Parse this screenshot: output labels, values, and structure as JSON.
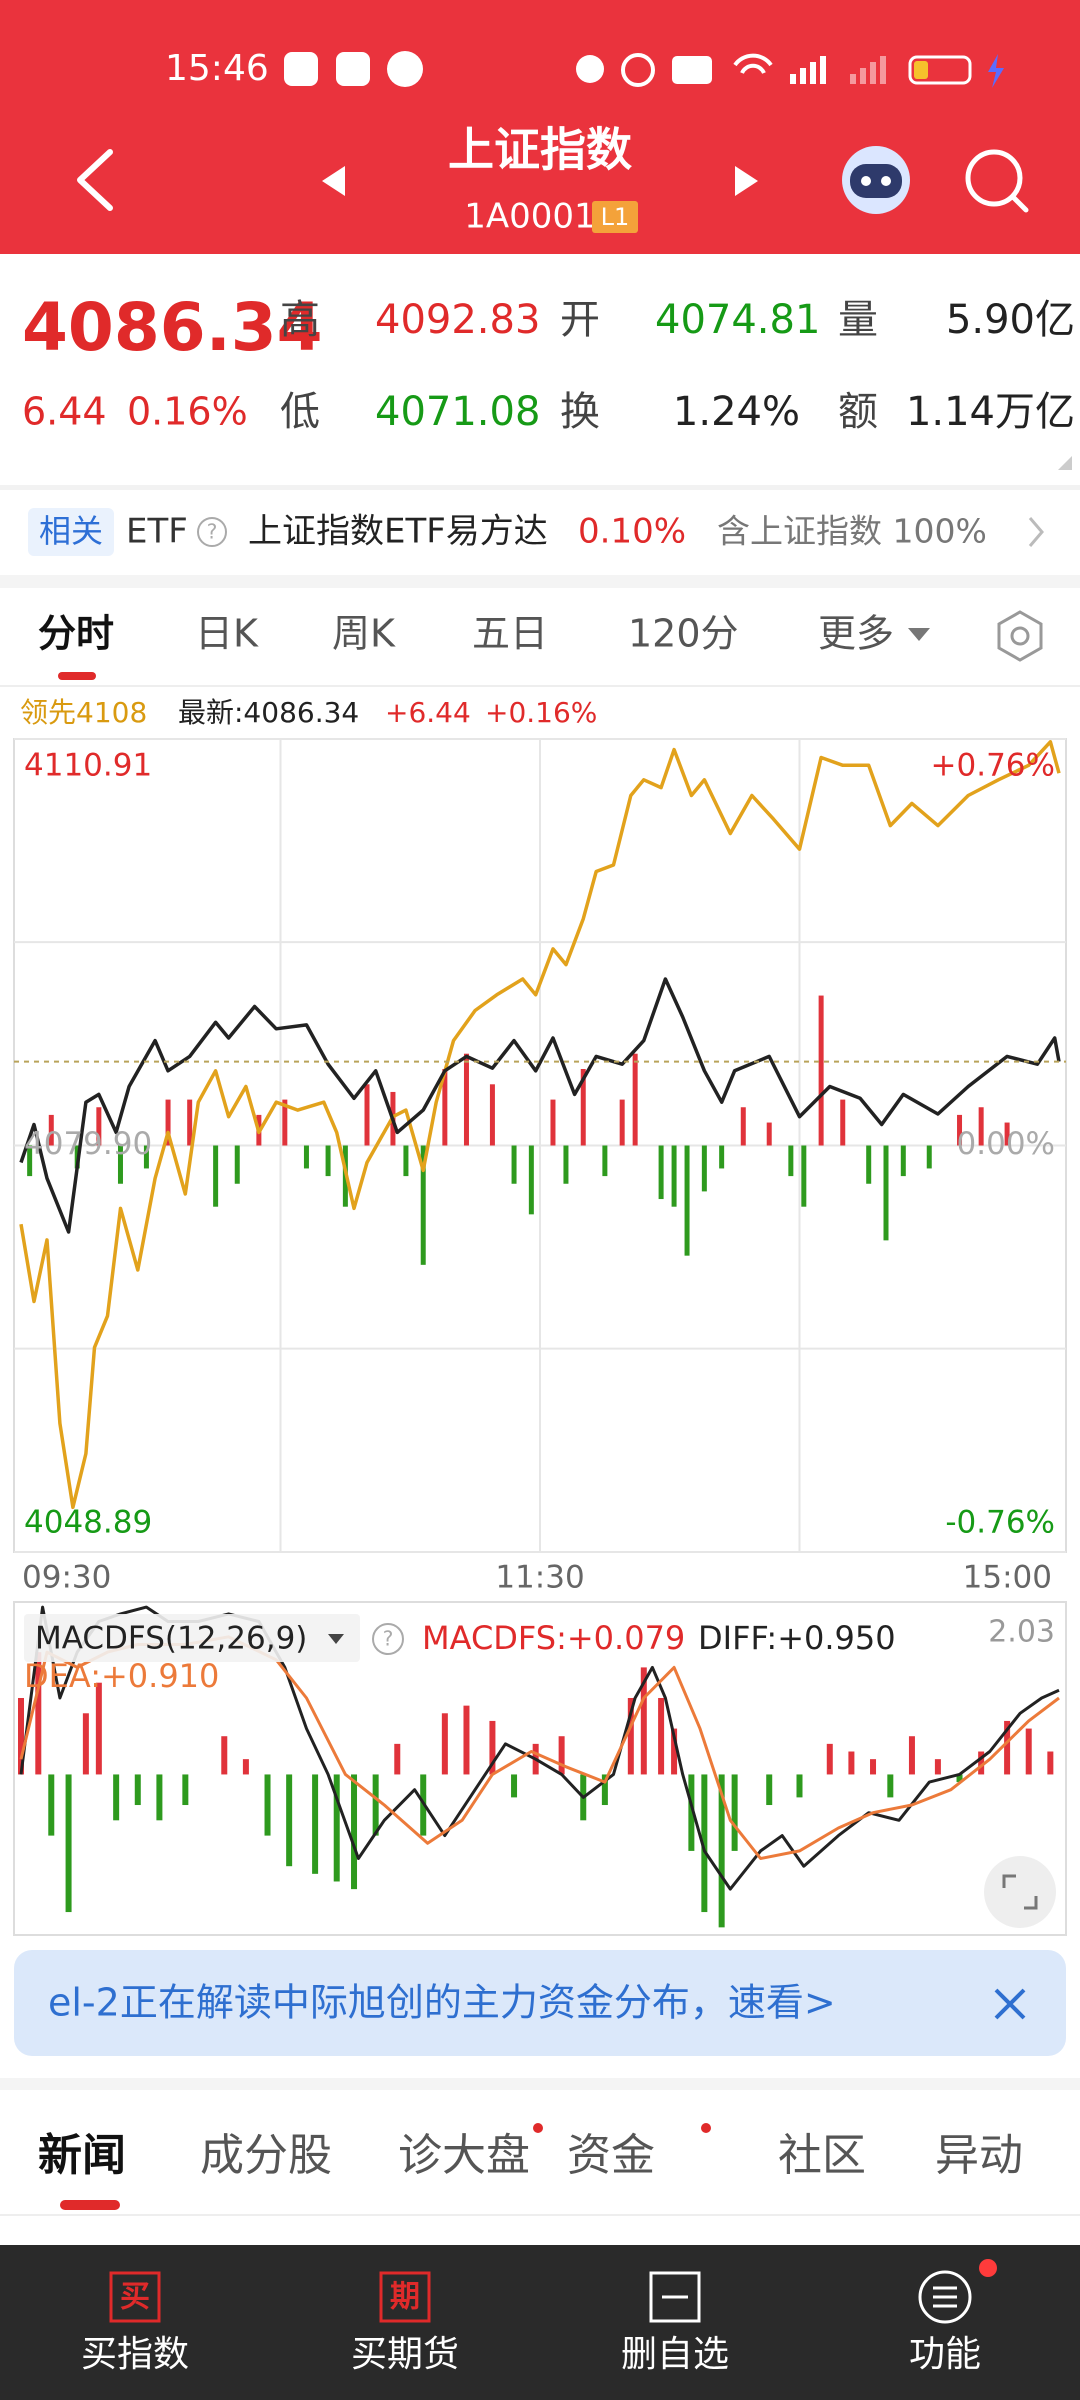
{
  "status_bar": {
    "time": "15:46"
  },
  "header": {
    "title": "上证指数",
    "code": "1A0001",
    "level": "L1"
  },
  "quote": {
    "price": "4086.34",
    "change": "6.44",
    "change_pct": "0.16%",
    "fields": [
      {
        "label": "高",
        "value": "4092.83"
      },
      {
        "label": "开",
        "value": "4074.81"
      },
      {
        "label": "量",
        "value": "5.90亿"
      },
      {
        "label": "低",
        "value": "4071.08"
      },
      {
        "label": "换",
        "value": "1.24%"
      },
      {
        "label": "额",
        "value": "1.14万亿"
      }
    ]
  },
  "etf": {
    "badge": "相关",
    "label": "ETF",
    "name": "上证指数ETF易方达",
    "change": "0.10%",
    "note": "含上证指数 100%"
  },
  "tabs": [
    "分时",
    "日K",
    "周K",
    "五日",
    "120分",
    "更多"
  ],
  "legend": {
    "lead": "领先4108",
    "latest": "最新:4086.34",
    "change": "+6.44",
    "change_pct": "+0.16%"
  },
  "chart_data": [
    {
      "type": "line",
      "xlim": [
        0,
        240
      ],
      "xticks": [
        {
          "value": 0,
          "label": "09:30"
        },
        {
          "value": 120,
          "label": "11:30"
        },
        {
          "value": 240,
          "label": "15:00"
        }
      ],
      "xgrid": [
        60,
        120,
        180
      ],
      "ylim": [
        4048.89,
        4110.91
      ],
      "yticks": [
        4110.91,
        {
          "value": 4079.9,
          "label": "4079.90"
        },
        4048.89
      ],
      "ygrid": [
        4095.41,
        4064.4
      ],
      "ytick_colors": [
        "#e02a2a",
        "#aaaaaa",
        "#169a16"
      ],
      "right_labels": [
        "+0.76%",
        "0.00%",
        "-0.76%"
      ],
      "bars": {
        "up_color": "#e0333b",
        "down_color": "#2e9a1e",
        "x": [
          2,
          7,
          13,
          18,
          23,
          29,
          34,
          39,
          45,
          50,
          55,
          61,
          66,
          71,
          75,
          80,
          86,
          89,
          93,
          98,
          103,
          109,
          114,
          118,
          123,
          126,
          130,
          135,
          139,
          142,
          148,
          151,
          154,
          158,
          162,
          167,
          173,
          178,
          181,
          185,
          190,
          196,
          200,
          204,
          210,
          217,
          222,
          228
        ],
        "values": [
          -20,
          20,
          -15,
          25,
          -25,
          -15,
          30,
          30,
          -40,
          -25,
          20,
          30,
          -15,
          -20,
          -40,
          40,
          35,
          -20,
          -78,
          50,
          60,
          40,
          -25,
          -45,
          30,
          -25,
          50,
          -20,
          30,
          60,
          -35,
          -40,
          -72,
          -30,
          -15,
          25,
          15,
          -20,
          -40,
          98,
          30,
          -25,
          -62,
          -20,
          -15,
          20,
          25,
          15
        ]
      },
      "series": [
        {
          "color": "#e2a21c",
          "x": [
            0,
            3,
            6,
            9,
            12,
            15,
            17,
            20,
            23,
            27,
            31,
            34,
            38,
            41,
            45,
            48,
            52,
            55,
            59,
            64,
            70,
            73,
            77,
            80,
            86,
            89,
            93,
            96,
            100,
            105,
            110,
            116,
            119,
            123,
            126,
            130,
            133,
            137,
            141,
            144,
            148,
            151,
            155,
            158,
            164,
            169,
            174,
            180,
            185,
            190,
            196,
            201,
            206,
            212,
            219,
            226,
            233,
            238,
            240
          ],
          "values": [
            4073.9,
            4068.0,
            4072.7,
            4058.7,
            4052.3,
            4056.4,
            4064.5,
            4066.9,
            4075.1,
            4070.4,
            4077.4,
            4080.9,
            4076.2,
            4083.2,
            4085.6,
            4082.1,
            4084.4,
            4080.9,
            4083.2,
            4082.6,
            4083.2,
            4080.9,
            4075.1,
            4078.6,
            4082.1,
            4082.6,
            4078.0,
            4083.2,
            4087.9,
            4090.2,
            4091.4,
            4092.6,
            4091.4,
            4094.9,
            4093.7,
            4097.2,
            4100.8,
            4101.3,
            4106.6,
            4107.8,
            4107.2,
            4110.1,
            4106.6,
            4107.8,
            4103.7,
            4106.6,
            4104.8,
            4102.5,
            4109.5,
            4108.9,
            4108.9,
            4104.3,
            4106.0,
            4104.3,
            4106.6,
            4107.8,
            4108.9,
            4110.7,
            4108.3
          ]
        },
        {
          "color": "#222222",
          "x": [
            0,
            3,
            6,
            11,
            15,
            18,
            22,
            25,
            31,
            34,
            39,
            45,
            48,
            54,
            59,
            66,
            71,
            77,
            82,
            87,
            93,
            98,
            103,
            109,
            114,
            119,
            123,
            128,
            133,
            139,
            144,
            149,
            153,
            158,
            162,
            165,
            173,
            180,
            187,
            194,
            199,
            204,
            212,
            219,
            228,
            235,
            239,
            240
          ],
          "values": [
            4078.6,
            4081.5,
            4077.4,
            4073.3,
            4083.2,
            4083.8,
            4080.9,
            4084.4,
            4087.9,
            4085.6,
            4086.7,
            4089.3,
            4088.1,
            4090.5,
            4088.8,
            4089.1,
            4086.1,
            4083.5,
            4085.6,
            4080.9,
            4082.6,
            4085.6,
            4086.7,
            4085.8,
            4087.9,
            4085.6,
            4088.1,
            4083.8,
            4086.7,
            4086.1,
            4087.9,
            4092.6,
            4089.7,
            4085.6,
            4083.2,
            4085.6,
            4086.7,
            4082.1,
            4084.4,
            4083.5,
            4081.5,
            4083.8,
            4082.3,
            4084.4,
            4086.7,
            4086.1,
            4088.1,
            4086.3
          ]
        }
      ]
    },
    {
      "type": "bar",
      "xlim": [
        0,
        240
      ],
      "ylim": [
        -1.89,
        2.03
      ],
      "bars": {
        "up_color": "#e0333b",
        "down_color": "#2e9a1e",
        "x": [
          0,
          4,
          7,
          11,
          15,
          18,
          22,
          27,
          32,
          38,
          47,
          52,
          57,
          62,
          68,
          73,
          77,
          82,
          87,
          93,
          98,
          103,
          109,
          114,
          119,
          125,
          130,
          135,
          141,
          144,
          148,
          151,
          155,
          158,
          162,
          165,
          173,
          180,
          187,
          192,
          197,
          201,
          206,
          212,
          217,
          222,
          228,
          233,
          238
        ],
        "values": [
          0.9,
          1.44,
          -0.72,
          -1.62,
          0.72,
          1.08,
          -0.54,
          -0.36,
          -0.54,
          -0.36,
          0.45,
          0.18,
          -0.72,
          -1.08,
          -1.17,
          -1.26,
          -1.35,
          -0.72,
          0.36,
          -0.72,
          0.72,
          0.81,
          0.63,
          -0.27,
          0.36,
          0.45,
          -0.54,
          -0.36,
          0.9,
          1.26,
          0.9,
          0.54,
          -0.9,
          -1.62,
          -1.8,
          -0.9,
          -0.36,
          -0.27,
          0.36,
          0.27,
          0.18,
          -0.27,
          0.45,
          0.18,
          -0.09,
          0.27,
          0.63,
          0.54,
          0.27
        ]
      },
      "series": [
        {
          "color": "#222222",
          "x": [
            0,
            5,
            9,
            13,
            18,
            23,
            29,
            34,
            41,
            48,
            55,
            61,
            66,
            71,
            78,
            84,
            91,
            98,
            105,
            112,
            119,
            125,
            130,
            137,
            142,
            146,
            149,
            153,
            158,
            164,
            171,
            176,
            181,
            189,
            196,
            203,
            210,
            217,
            224,
            231,
            236,
            240
          ],
          "values": [
            0,
            1.97,
            0.9,
            1.44,
            1.8,
            1.89,
            1.97,
            1.8,
            1.8,
            1.89,
            1.8,
            1.26,
            0.54,
            0,
            -0.99,
            -0.54,
            -0.18,
            -0.72,
            -0.18,
            0.36,
            0.18,
            0,
            -0.27,
            0,
            0.9,
            1.26,
            0.9,
            0,
            -0.9,
            -1.35,
            -0.9,
            -0.72,
            -1.08,
            -0.72,
            -0.45,
            -0.54,
            -0.09,
            0,
            0.27,
            0.72,
            0.9,
            0.99
          ]
        },
        {
          "color": "#ec7a3a",
          "x": [
            0,
            6,
            13,
            20,
            27,
            38,
            48,
            59,
            66,
            75,
            84,
            94,
            102,
            109,
            118,
            126,
            135,
            144,
            151,
            157,
            164,
            171,
            180,
            189,
            197,
            206,
            215,
            224,
            233,
            240
          ],
          "values": [
            0.18,
            1.44,
            1.26,
            1.44,
            1.53,
            1.53,
            1.62,
            1.35,
            0.9,
            0,
            -0.36,
            -0.81,
            -0.54,
            0,
            0.27,
            0.09,
            -0.09,
            0.9,
            1.26,
            0.54,
            -0.54,
            -0.99,
            -0.9,
            -0.63,
            -0.45,
            -0.36,
            -0.18,
            0.18,
            0.63,
            0.9
          ]
        }
      ]
    }
  ],
  "macd_legend": {
    "name": "MACDFS(12,26,9)",
    "macdfs": "MACDFS:+0.079",
    "diff": "DIFF:+0.950",
    "dea": "DEA:+0.910"
  },
  "banner": "el-2正在解读中际旭创的主力资金分布，速看>",
  "news_tabs": [
    "新闻",
    "成分股",
    "诊大盘",
    "资金",
    "社区",
    "异动"
  ],
  "bottom_nav": [
    {
      "icon": "买",
      "label": "买指数"
    },
    {
      "icon": "期",
      "label": "买期货"
    },
    {
      "label": "删自选"
    },
    {
      "label": "功能"
    }
  ]
}
